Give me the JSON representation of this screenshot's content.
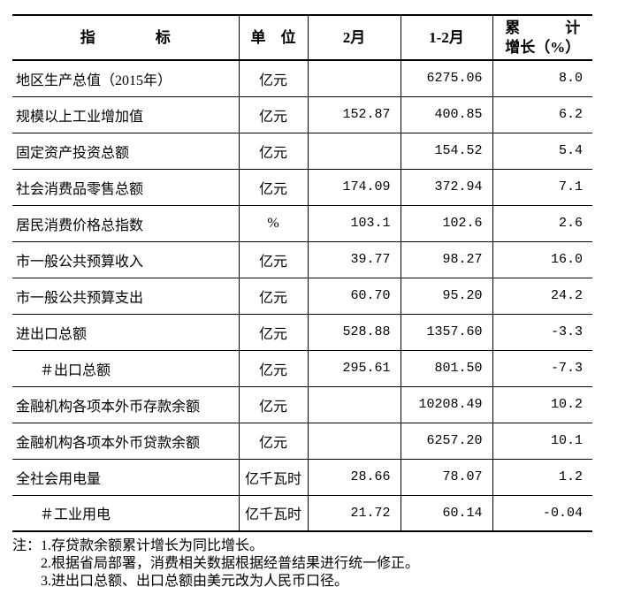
{
  "table": {
    "headers": {
      "indicator": "指　　　　标",
      "unit": "单　位",
      "feb": "2月",
      "jan_feb": "1-2月",
      "growth_line1": "累　　　计",
      "growth_line2": "增长（%）"
    },
    "rows": [
      {
        "indicator": "地区生产总值（2015年）",
        "unit": "亿元",
        "feb": "",
        "jan_feb": "6275.06",
        "growth": "8.0",
        "indent": false
      },
      {
        "indicator": "规模以上工业增加值",
        "unit": "亿元",
        "feb": "152.87",
        "jan_feb": "400.85",
        "growth": "6.2",
        "indent": false
      },
      {
        "indicator": "固定资产投资总额",
        "unit": "亿元",
        "feb": "",
        "jan_feb": "154.52",
        "growth": "5.4",
        "indent": false
      },
      {
        "indicator": "社会消费品零售总额",
        "unit": "亿元",
        "feb": "174.09",
        "jan_feb": "372.94",
        "growth": "7.1",
        "indent": false
      },
      {
        "indicator": "居民消费价格总指数",
        "unit": "%",
        "feb": "103.1",
        "jan_feb": "102.6",
        "growth": "2.6",
        "indent": false
      },
      {
        "indicator": "市一般公共预算收入",
        "unit": "亿元",
        "feb": "39.77",
        "jan_feb": "98.27",
        "growth": "16.0",
        "indent": false
      },
      {
        "indicator": "市一般公共预算支出",
        "unit": "亿元",
        "feb": "60.70",
        "jan_feb": "95.20",
        "growth": "24.2",
        "indent": false
      },
      {
        "indicator": "进出口总额",
        "unit": "亿元",
        "feb": "528.88",
        "jan_feb": "1357.60",
        "growth": "-3.3",
        "indent": false
      },
      {
        "indicator": "＃出口总额",
        "unit": "亿元",
        "feb": "295.61",
        "jan_feb": "801.50",
        "growth": "-7.3",
        "indent": true
      },
      {
        "indicator": "金融机构各项本外币存款余额",
        "unit": "亿元",
        "feb": "",
        "jan_feb": "10208.49",
        "growth": "10.2",
        "indent": false
      },
      {
        "indicator": "金融机构各项本外币贷款余额",
        "unit": "亿元",
        "feb": "",
        "jan_feb": "6257.20",
        "growth": "10.1",
        "indent": false
      },
      {
        "indicator": "全社会用电量",
        "unit": "亿千瓦时",
        "feb": "28.66",
        "jan_feb": "78.07",
        "growth": "1.2",
        "indent": false
      },
      {
        "indicator": "＃工业用电",
        "unit": "亿千瓦时",
        "feb": "21.72",
        "jan_feb": "60.14",
        "growth": "-0.04",
        "indent": true
      }
    ]
  },
  "notes": {
    "label": "注：",
    "items": [
      "1.存贷款余额累计增长为同比增长。",
      "2.根据省局部署，消费相关数据根据经普结果进行统一修正。",
      "3.进出口总额、出口总额由美元改为人民币口径。"
    ]
  }
}
